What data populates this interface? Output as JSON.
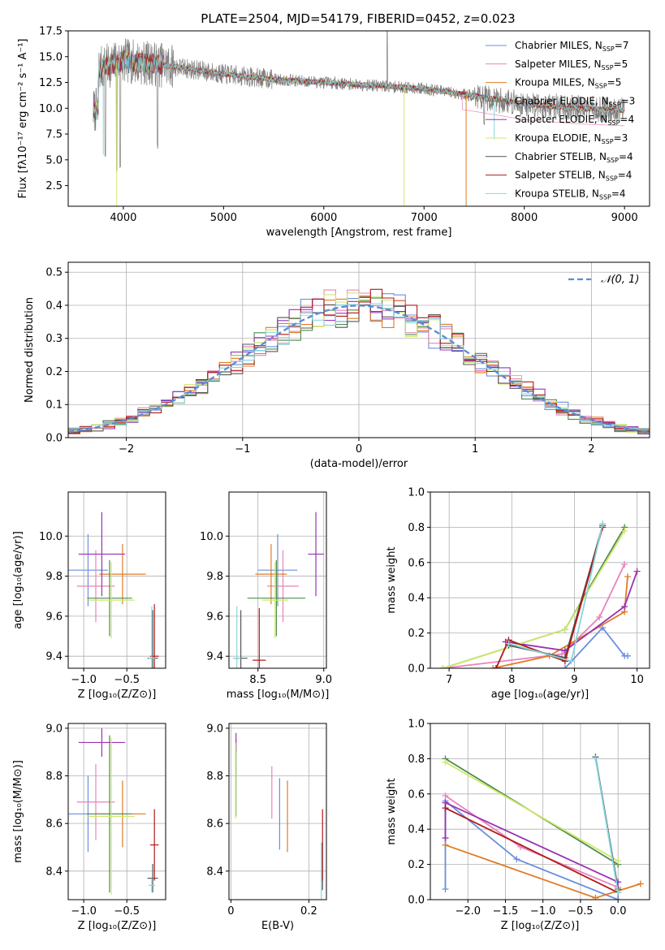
{
  "colors": {
    "Chabrier MILES": "#6a8fdc",
    "Salpeter MILES": "#e883ba",
    "Kroupa MILES": "#e07b25",
    "Chabrier ELODIE": "#4e8b4e",
    "Salpeter ELODIE": "#9a32b4",
    "Kroupa ELODIE": "#cfe86a",
    "Chabrier STELIB": "#555555",
    "Salpeter STELIB": "#b11a1a",
    "Kroupa STELIB": "#86d6dd",
    "grid": "#b0b0b0",
    "normal_curve": "#5b8bd8"
  },
  "chart_data": [
    {
      "id": "spectrum",
      "type": "line",
      "title": "PLATE=2504, MJD=54179, FIBERID=0452, z=0.023",
      "xlabel": "wavelength [Angstrom, rest frame]",
      "ylabel": "Flux [fλ10⁻¹⁷ erg cm⁻² s⁻¹ A⁻¹]",
      "xlim": [
        3450,
        9250
      ],
      "ylim": [
        0.5,
        17.5
      ],
      "xticks": [
        "4000",
        "5000",
        "6000",
        "7000",
        "8000",
        "9000"
      ],
      "yticks": [
        "2.5",
        "5.0",
        "7.5",
        "10.0",
        "12.5",
        "15.0",
        "17.5"
      ],
      "legend_position": "top-right",
      "legend": [
        {
          "base": "Chabrier MILES, N",
          "sub": "SSP",
          "tail": "=7"
        },
        {
          "base": "Salpeter MILES, N",
          "sub": "SSP",
          "tail": "=5"
        },
        {
          "base": "Kroupa MILES, N",
          "sub": "SSP",
          "tail": "=5"
        },
        {
          "base": "Chabrier ELODIE, N",
          "sub": "SSP",
          "tail": "=3"
        },
        {
          "base": "Salpeter ELODIE, N",
          "sub": "SSP",
          "tail": "=4"
        },
        {
          "base": "Kroupa ELODIE, N",
          "sub": "SSP",
          "tail": "=3"
        },
        {
          "base": "Chabrier STELIB, N",
          "sub": "SSP",
          "tail": "=4"
        },
        {
          "base": "Salpeter STELIB, N",
          "sub": "SSP",
          "tail": "=4"
        },
        {
          "base": "Kroupa STELIB, N",
          "sub": "SSP",
          "tail": "=4"
        }
      ],
      "data_wavelength_range": [
        3700,
        9000
      ],
      "continuum_points": [
        [
          3750,
          13.8
        ],
        [
          4000,
          14.6
        ],
        [
          4300,
          14.3
        ],
        [
          4600,
          13.9
        ],
        [
          5000,
          13.3
        ],
        [
          5500,
          12.8
        ],
        [
          6000,
          12.5
        ],
        [
          6500,
          12.2
        ],
        [
          7000,
          11.9
        ],
        [
          7500,
          11.2
        ],
        [
          8000,
          10.4
        ],
        [
          8500,
          10.0
        ],
        [
          9000,
          9.8
        ]
      ],
      "absorption_features": [
        [
          3820,
          5.0
        ],
        [
          3934,
          3.8
        ],
        [
          3969,
          4.0
        ],
        [
          4340,
          6.0
        ],
        [
          7600,
          7.5
        ]
      ]
    },
    {
      "id": "residuals",
      "type": "line",
      "xlabel": "(data-model)/error",
      "ylabel": "Normed distribution",
      "xlim": [
        -2.5,
        2.5
      ],
      "ylim": [
        0,
        0.53
      ],
      "xticks": [
        "−2",
        "−1",
        "0",
        "1",
        "2"
      ],
      "yticks": [
        "0.0",
        "0.1",
        "0.2",
        "0.3",
        "0.4",
        "0.5"
      ],
      "legend": [
        "𝒩(0, 1)"
      ],
      "legend_position": "top-right",
      "normal": {
        "mean": 0,
        "sigma": 1
      },
      "bin_width": 0.1
    },
    {
      "id": "age-vs-Z",
      "type": "scatter",
      "xlabel": "Z [log₁₀(Z/Z⊙)]",
      "ylabel": "age  [log₁₀(age/yr)]",
      "xlim": [
        -1.18,
        -0.05
      ],
      "ylim": [
        9.34,
        10.22
      ],
      "xticks": [
        "−1.0",
        "−0.5"
      ],
      "yticks": [
        "9.4",
        "9.6",
        "9.8",
        "10.0"
      ],
      "points": [
        {
          "series": "Chabrier MILES",
          "x": -0.95,
          "xerr": 0.23,
          "y": 9.83,
          "yerr": 0.18
        },
        {
          "series": "Salpeter MILES",
          "x": -0.86,
          "xerr": 0.22,
          "y": 9.75,
          "yerr": 0.18
        },
        {
          "series": "Kroupa MILES",
          "x": -0.55,
          "xerr": 0.27,
          "y": 9.81,
          "yerr": 0.15
        },
        {
          "series": "Chabrier ELODIE",
          "x": -0.7,
          "xerr": 0.26,
          "y": 9.69,
          "yerr": 0.19
        },
        {
          "series": "Salpeter ELODIE",
          "x": -0.79,
          "xerr": 0.27,
          "y": 9.91,
          "yerr": 0.21
        },
        {
          "series": "Kroupa ELODIE",
          "x": -0.68,
          "xerr": 0.27,
          "y": 9.68,
          "yerr": 0.19
        },
        {
          "series": "Chabrier STELIB",
          "x": -0.2,
          "xerr": 0.06,
          "y": 9.39,
          "yerr": 0.24
        },
        {
          "series": "Salpeter STELIB",
          "x": -0.18,
          "xerr": 0.05,
          "y": 9.4,
          "yerr": 0.26
        },
        {
          "series": "Kroupa STELIB",
          "x": -0.21,
          "xerr": 0.04,
          "y": 9.39,
          "yerr": 0.26
        }
      ]
    },
    {
      "id": "age-vs-mass",
      "type": "scatter",
      "xlabel": "mass [log₁₀(M/M⊙)]",
      "ylabel": "",
      "xlim": [
        8.28,
        9.02
      ],
      "ylim": [
        9.34,
        10.22
      ],
      "xticks": [
        "8.5",
        "9.0"
      ],
      "yticks": [
        "9.4",
        "9.6",
        "9.8",
        "10.0"
      ],
      "points": [
        {
          "series": "Chabrier MILES",
          "x": 8.65,
          "xerr": 0.15,
          "y": 9.83,
          "yerr": 0.18
        },
        {
          "series": "Salpeter MILES",
          "x": 8.69,
          "xerr": 0.12,
          "y": 9.75,
          "yerr": 0.18
        },
        {
          "series": "Kroupa MILES",
          "x": 8.6,
          "xerr": 0.12,
          "y": 9.81,
          "yerr": 0.15
        },
        {
          "series": "Chabrier ELODIE",
          "x": 8.64,
          "xerr": 0.22,
          "y": 9.69,
          "yerr": 0.19
        },
        {
          "series": "Salpeter ELODIE",
          "x": 8.94,
          "xerr": 0.06,
          "y": 9.91,
          "yerr": 0.21
        },
        {
          "series": "Kroupa ELODIE",
          "x": 8.63,
          "xerr": 0.1,
          "y": 9.68,
          "yerr": 0.19
        },
        {
          "series": "Chabrier STELIB",
          "x": 8.37,
          "xerr": 0.05,
          "y": 9.39,
          "yerr": 0.24
        },
        {
          "series": "Salpeter STELIB",
          "x": 8.51,
          "xerr": 0.05,
          "y": 9.38,
          "yerr": 0.26
        },
        {
          "series": "Kroupa STELIB",
          "x": 8.34,
          "xerr": 0.03,
          "y": 9.39,
          "yerr": 0.26
        }
      ]
    },
    {
      "id": "weight-vs-age",
      "type": "line",
      "xlabel": "age  [log₁₀(age/yr)]",
      "ylabel": "mass weight",
      "xlim": [
        6.7,
        10.2
      ],
      "ylim": [
        0,
        1
      ],
      "xticks": [
        "7",
        "8",
        "9",
        "10"
      ],
      "yticks": [
        "0.0",
        "0.2",
        "0.4",
        "0.6",
        "0.8",
        "1.0"
      ],
      "series": [
        {
          "name": "Chabrier MILES",
          "x": [
            7.75,
            8.85,
            9.45,
            9.8,
            9.85
          ],
          "y": [
            0.0,
            0.0,
            0.23,
            0.07,
            0.07
          ]
        },
        {
          "name": "Salpeter MILES",
          "x": [
            6.9,
            8.8,
            9.4,
            9.8
          ],
          "y": [
            0.0,
            0.08,
            0.29,
            0.59
          ]
        },
        {
          "name": "Kroupa MILES",
          "x": [
            7.7,
            8.6,
            9.8,
            9.85
          ],
          "y": [
            0.0,
            0.07,
            0.32,
            0.52
          ]
        },
        {
          "name": "Chabrier ELODIE",
          "x": [
            6.9,
            8.85,
            9.8
          ],
          "y": [
            0.0,
            0.22,
            0.8
          ]
        },
        {
          "name": "Salpeter ELODIE",
          "x": [
            7.9,
            8.85,
            9.8,
            10.0
          ],
          "y": [
            0.15,
            0.1,
            0.35,
            0.55
          ]
        },
        {
          "name": "Kroupa ELODIE",
          "x": [
            6.9,
            8.85,
            9.8
          ],
          "y": [
            0.0,
            0.22,
            0.78
          ]
        },
        {
          "name": "Chabrier STELIB",
          "x": [
            7.95,
            8.85,
            9.45
          ],
          "y": [
            0.13,
            0.06,
            0.81
          ]
        },
        {
          "name": "Salpeter STELIB",
          "x": [
            7.75,
            7.95,
            8.85,
            9.45
          ],
          "y": [
            0.0,
            0.16,
            0.04,
            0.8
          ]
        },
        {
          "name": "Kroupa STELIB",
          "x": [
            7.95,
            8.95,
            9.45
          ],
          "y": [
            0.14,
            0.04,
            0.82
          ]
        }
      ]
    },
    {
      "id": "mass-vs-Z",
      "type": "scatter",
      "xlabel": "Z [log₁₀(Z/Z⊙)]",
      "ylabel": "mass [log₁₀(M/M⊙)]",
      "xlim": [
        -1.18,
        -0.05
      ],
      "ylim": [
        8.28,
        9.02
      ],
      "xticks": [
        "−1.0",
        "−0.5"
      ],
      "yticks": [
        "8.4",
        "8.6",
        "8.8",
        "9.0"
      ],
      "points": [
        {
          "series": "Chabrier MILES",
          "x": -0.95,
          "xerr": 0.23,
          "y": 8.64,
          "yerr": 0.16
        },
        {
          "series": "Salpeter MILES",
          "x": -0.86,
          "xerr": 0.22,
          "y": 8.69,
          "yerr": 0.16
        },
        {
          "series": "Kroupa MILES",
          "x": -0.55,
          "xerr": 0.27,
          "y": 8.64,
          "yerr": 0.14
        },
        {
          "series": "Chabrier ELODIE",
          "x": -0.7,
          "xerr": 0.26,
          "y": 8.64,
          "yerr": 0.33
        },
        {
          "series": "Salpeter ELODIE",
          "x": -0.79,
          "xerr": 0.27,
          "y": 8.94,
          "yerr": 0.06
        },
        {
          "series": "Kroupa ELODIE",
          "x": -0.68,
          "xerr": 0.27,
          "y": 8.63,
          "yerr": 0.33
        },
        {
          "series": "Chabrier STELIB",
          "x": -0.2,
          "xerr": 0.06,
          "y": 8.37,
          "yerr": 0.06
        },
        {
          "series": "Salpeter STELIB",
          "x": -0.18,
          "xerr": 0.05,
          "y": 8.51,
          "yerr": 0.15
        },
        {
          "series": "Kroupa STELIB",
          "x": -0.21,
          "xerr": 0.04,
          "y": 8.34,
          "yerr": 0.03
        }
      ]
    },
    {
      "id": "mass-vs-EBV",
      "type": "scatter",
      "xlabel": "E(B-V)",
      "ylabel": "",
      "xlim": [
        -0.005,
        0.245
      ],
      "ylim": [
        8.28,
        9.02
      ],
      "xticks": [
        "0",
        "0.2"
      ],
      "yticks": [
        "8.4",
        "8.6",
        "8.8",
        "9.0"
      ],
      "points": [
        {
          "series": "Chabrier MILES",
          "x": 0.125,
          "y": 8.64,
          "yerr": 0.15
        },
        {
          "series": "Salpeter MILES",
          "x": 0.105,
          "y": 8.73,
          "yerr": 0.11
        },
        {
          "series": "Kroupa MILES",
          "x": 0.145,
          "y": 8.63,
          "yerr": 0.15
        },
        {
          "series": "Chabrier ELODIE",
          "x": 0.013,
          "y": 8.79,
          "yerr": 0.16
        },
        {
          "series": "Salpeter ELODIE",
          "x": 0.013,
          "y": 8.94,
          "yerr": 0.04
        },
        {
          "series": "Kroupa ELODIE",
          "x": 0.012,
          "y": 8.78,
          "yerr": 0.16
        },
        {
          "series": "Chabrier STELIB",
          "x": 0.235,
          "y": 8.42,
          "yerr": 0.1
        },
        {
          "series": "Salpeter STELIB",
          "x": 0.235,
          "y": 8.51,
          "yerr": 0.15
        },
        {
          "series": "Kroupa STELIB",
          "x": 0.232,
          "y": 8.4,
          "yerr": 0.12
        }
      ]
    },
    {
      "id": "weight-vs-Z",
      "type": "line",
      "xlabel": "Z [log₁₀(Z/Z⊙)]",
      "ylabel": "mass weight",
      "xlim": [
        -2.5,
        0.42
      ],
      "ylim": [
        0,
        1
      ],
      "xticks": [
        "−2.0",
        "−1.5",
        "−1.0",
        "−0.5",
        "0.0"
      ],
      "yticks": [
        "0.0",
        "0.2",
        "0.4",
        "0.6",
        "0.8",
        "1.0"
      ],
      "series": [
        {
          "name": "Chabrier MILES",
          "x": [
            -2.3,
            -2.3,
            -1.35,
            0.0,
            0.0
          ],
          "y": [
            0.06,
            0.56,
            0.23,
            0.0,
            0.07
          ]
        },
        {
          "name": "Salpeter MILES",
          "x": [
            -2.3,
            -1.3,
            0.0
          ],
          "y": [
            0.59,
            0.3,
            0.07
          ]
        },
        {
          "name": "Kroupa MILES",
          "x": [
            -2.3,
            -0.3,
            0.3
          ],
          "y": [
            0.31,
            0.01,
            0.09
          ]
        },
        {
          "name": "Chabrier ELODIE",
          "x": [
            -2.3,
            0.0
          ],
          "y": [
            0.8,
            0.2
          ]
        },
        {
          "name": "Salpeter ELODIE",
          "x": [
            -2.3,
            -2.3,
            0.0
          ],
          "y": [
            0.35,
            0.55,
            0.1
          ]
        },
        {
          "name": "Kroupa ELODIE",
          "x": [
            -2.3,
            0.0
          ],
          "y": [
            0.78,
            0.22
          ]
        },
        {
          "name": "Chabrier STELIB",
          "x": [
            -0.3,
            0.0
          ],
          "y": [
            0.81,
            0.06
          ]
        },
        {
          "name": "Salpeter STELIB",
          "x": [
            -2.3,
            0.0
          ],
          "y": [
            0.52,
            0.04
          ]
        },
        {
          "name": "Kroupa STELIB",
          "x": [
            -0.3,
            0.0
          ],
          "y": [
            0.8,
            0.04
          ]
        }
      ]
    }
  ]
}
